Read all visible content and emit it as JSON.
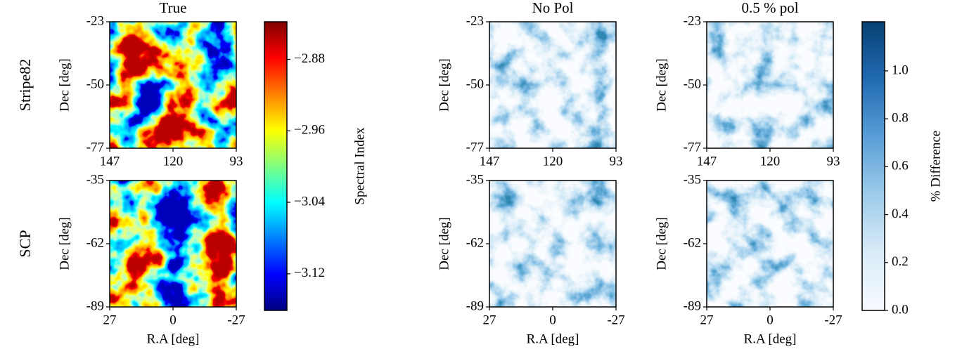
{
  "chart_data": [
    {
      "type": "heatmap",
      "title": "True",
      "row_label": "Stripe82",
      "ylabel": "Dec [deg]",
      "colormap": "jet",
      "xlim": [
        147,
        93
      ],
      "xticks": [
        147,
        120,
        93
      ],
      "ylim": [
        -77,
        -23
      ],
      "yticks": [
        -23,
        -50,
        -77
      ]
    },
    {
      "type": "heatmap",
      "title": "No Pol",
      "ylabel": "Dec [deg]",
      "colormap": "Blues",
      "xlim": [
        147,
        93
      ],
      "xticks": [
        147,
        120,
        93
      ],
      "ylim": [
        -77,
        -23
      ],
      "yticks": [
        -23,
        -50,
        -77
      ]
    },
    {
      "type": "heatmap",
      "title": "0.5 % pol",
      "ylabel": "Dec [deg]",
      "colormap": "Blues",
      "xlim": [
        147,
        93
      ],
      "xticks": [
        147,
        120,
        93
      ],
      "ylim": [
        -77,
        -23
      ],
      "yticks": [
        -23,
        -50,
        -77
      ]
    },
    {
      "type": "heatmap",
      "row_label": "SCP",
      "ylabel": "Dec [deg]",
      "xlabel": "R.A [deg]",
      "colormap": "jet",
      "xlim": [
        27,
        -27
      ],
      "xticks": [
        27,
        0,
        -27
      ],
      "ylim": [
        -89,
        -35
      ],
      "yticks": [
        -35,
        -62,
        -89
      ]
    },
    {
      "type": "heatmap",
      "ylabel": "Dec [deg]",
      "xlabel": "R.A [deg]",
      "colormap": "Blues",
      "xlim": [
        27,
        -27
      ],
      "xticks": [
        27,
        0,
        -27
      ],
      "ylim": [
        -89,
        -35
      ],
      "yticks": [
        -35,
        -62,
        -89
      ]
    },
    {
      "type": "heatmap",
      "ylabel": "Dec [deg]",
      "xlabel": "R.A [deg]",
      "colormap": "Blues",
      "xlim": [
        27,
        -27
      ],
      "xticks": [
        27,
        0,
        -27
      ],
      "ylim": [
        -89,
        -35
      ],
      "yticks": [
        -35,
        -62,
        -89
      ]
    },
    {
      "type": "colorbar",
      "label": "Spectral Index",
      "colormap": "jet",
      "ylim": [
        -3.161,
        -2.838
      ],
      "yticks": [
        {
          "value": -2.88,
          "label": "−2.88"
        },
        {
          "value": -2.96,
          "label": "−2.96"
        },
        {
          "value": -3.04,
          "label": "−3.04"
        },
        {
          "value": -3.12,
          "label": "−3.12"
        }
      ]
    },
    {
      "type": "colorbar",
      "label": "% Difference",
      "colormap": "Blues",
      "ylim": [
        0,
        1.205
      ],
      "yticks": [
        {
          "value": 0,
          "label": "0.0"
        },
        0.2,
        0.4,
        0.6,
        0.8,
        {
          "value": 1,
          "label": "1.0"
        }
      ]
    }
  ]
}
